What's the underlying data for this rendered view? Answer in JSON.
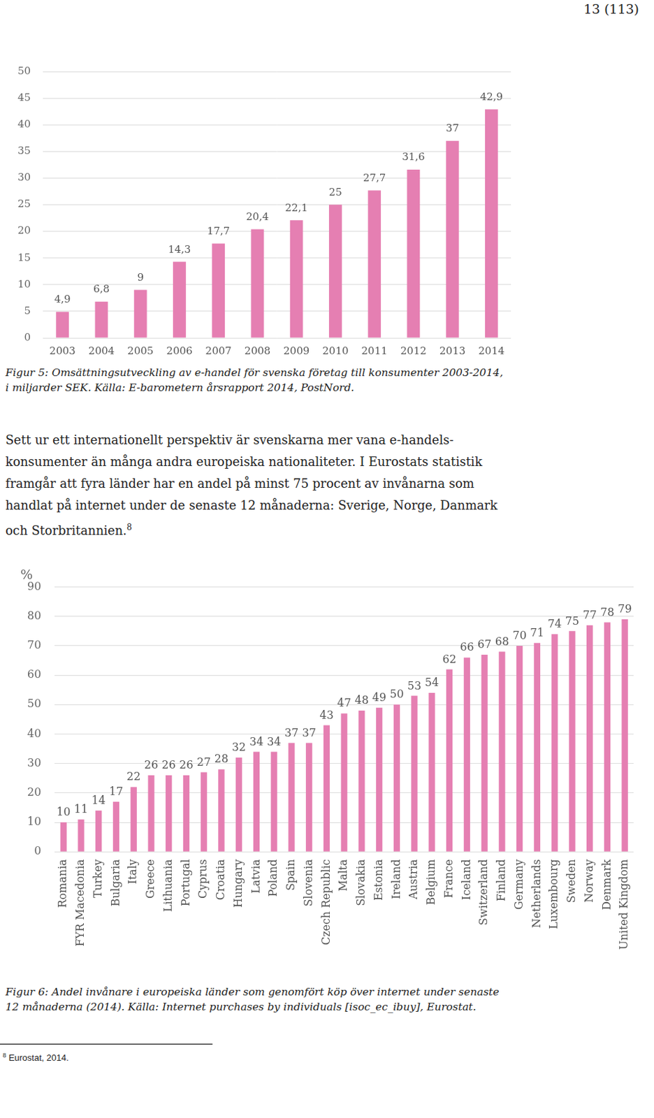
{
  "header": {
    "page": "13 (113)"
  },
  "chart_data": [
    {
      "type": "bar",
      "categories": [
        "2003",
        "2004",
        "2005",
        "2006",
        "2007",
        "2008",
        "2009",
        "2010",
        "2011",
        "2012",
        "2013",
        "2014"
      ],
      "values": [
        4.9,
        6.8,
        9,
        14.3,
        17.7,
        20.4,
        22.1,
        25,
        27.7,
        31.6,
        37,
        42.9
      ],
      "value_labels": [
        "4,9",
        "6,8",
        "9",
        "14,3",
        "17,7",
        "20,4",
        "22,1",
        "25",
        "27,7",
        "31,6",
        "37",
        "42,9"
      ],
      "color": "#e57fb2",
      "ylim": [
        0,
        50
      ],
      "yticks": [
        0,
        5,
        10,
        15,
        20,
        25,
        30,
        35,
        40,
        45,
        50
      ],
      "grid": true,
      "data_labels": true,
      "caption": [
        "Figur 5: Omsättningsutveckling av e-handel för svenska företag till konsumenter 2003-2014,",
        "i miljarder SEK. Källa: E-barometern årsrapport 2014, PostNord."
      ]
    },
    {
      "type": "bar",
      "y_label": "%",
      "categories": [
        "Romania",
        "FYR Macedonia",
        "Turkey",
        "Bulgaria",
        "Italy",
        "Greece",
        "Lithuania",
        "Portugal",
        "Cyprus",
        "Croatia",
        "Hungary",
        "Latvia",
        "Poland",
        "Spain",
        "Slovenia",
        "Czech Republic",
        "Malta",
        "Slovakia",
        "Estonia",
        "Ireland",
        "Austria",
        "Belgium",
        "France",
        "Iceland",
        "Switzerland",
        "Finland",
        "Germany",
        "Netherlands",
        "Luxembourg",
        "Sweden",
        "Norway",
        "Denmark",
        "United Kingdom"
      ],
      "values": [
        10,
        11,
        14,
        17,
        22,
        26,
        26,
        26,
        27,
        28,
        32,
        34,
        34,
        37,
        37,
        43,
        47,
        48,
        49,
        50,
        53,
        54,
        62,
        66,
        67,
        68,
        70,
        71,
        74,
        75,
        77,
        78,
        79
      ],
      "color": "#e57fb2",
      "ylim": [
        0,
        90
      ],
      "yticks": [
        0,
        10,
        20,
        30,
        40,
        50,
        60,
        70,
        80,
        90
      ],
      "grid": true,
      "data_labels": true,
      "caption": [
        "Figur 6: Andel invånare i europeiska länder som genomfört köp över internet under senaste",
        "12 månaderna (2014). Källa: Internet purchases by individuals [isoc_ec_ibuy], Eurostat."
      ]
    }
  ],
  "document": {
    "paragraph": [
      "Sett ur ett internationellt perspektiv är svenskarna mer vana e-handels-",
      "konsumenter än många andra europeiska nationaliteter. I Eurostats statistik",
      "framgår att fyra länder har en andel på minst 75 procent av invånarna som",
      "handlat på internet under de senaste 12 månaderna: Sverige, Norge, Danmark",
      "och Storbritannien."
    ],
    "footnote_ref": "8",
    "footnote": {
      "number": "8",
      "text": "Eurostat, 2014."
    }
  }
}
